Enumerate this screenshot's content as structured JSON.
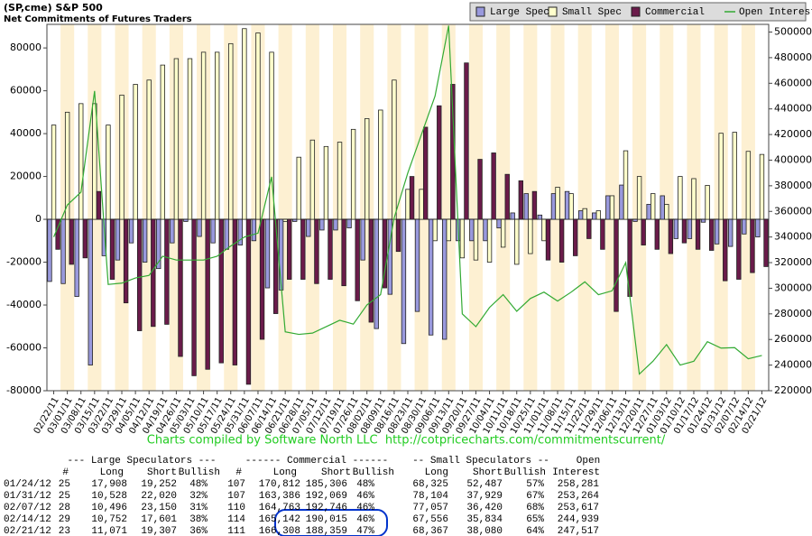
{
  "chart_data": {
    "type": "bar",
    "title": "(SP,cme) S&P 500",
    "subtitle": "Net Commitments of Futures Traders",
    "credit": "Charts compiled by Software North LLC  http://cotpricecharts.com/commitmentscurrent/",
    "legend": "top-right",
    "categories": [
      "02/22/11",
      "03/01/11",
      "03/08/11",
      "03/15/11",
      "03/22/11",
      "03/29/11",
      "04/05/11",
      "04/12/11",
      "04/19/11",
      "04/26/11",
      "05/03/11",
      "05/10/11",
      "05/17/11",
      "05/24/11",
      "05/31/11",
      "06/07/11",
      "06/14/11",
      "06/21/11",
      "06/28/11",
      "07/05/11",
      "07/12/11",
      "07/19/11",
      "07/26/11",
      "08/02/11",
      "08/09/11",
      "08/16/11",
      "08/23/11",
      "08/30/11",
      "09/06/11",
      "09/13/11",
      "09/20/11",
      "09/27/11",
      "10/04/11",
      "10/11/11",
      "10/18/11",
      "10/25/11",
      "11/01/11",
      "11/08/11",
      "11/15/11",
      "11/22/11",
      "11/29/11",
      "12/06/11",
      "12/13/11",
      "12/20/11",
      "12/27/11",
      "01/03/12",
      "01/10/12",
      "01/17/12",
      "01/24/12",
      "01/31/12",
      "02/07/12",
      "02/14/12",
      "02/21/12"
    ],
    "series": [
      {
        "name": "Large Spec",
        "type": "bar",
        "color": "#9999dd",
        "values": [
          -29000,
          -30000,
          -36000,
          -68000,
          -17000,
          -19000,
          -11000,
          -20000,
          -23000,
          -11000,
          -1000,
          -8000,
          -11000,
          -14000,
          -12000,
          -10000,
          -32000,
          -33000,
          -1000,
          -8000,
          -5000,
          -5000,
          -4000,
          -19000,
          -51000,
          -35000,
          -58000,
          -43000,
          -54000,
          -56000,
          -10000,
          -10000,
          -10000,
          -4000,
          3000,
          12000,
          2000,
          12000,
          13000,
          4000,
          3000,
          11000,
          16000,
          -1000,
          7000,
          11000,
          -9000,
          -9000,
          -1344,
          -11492,
          -12654,
          -6849,
          -8236
        ]
      },
      {
        "name": "Small Spec",
        "type": "bar",
        "color": "#ffffcc",
        "values": [
          44000,
          50000,
          54000,
          54000,
          44000,
          58000,
          63000,
          65000,
          72000,
          75000,
          75000,
          78000,
          78000,
          82000,
          89000,
          87000,
          78000,
          -1000,
          29000,
          37000,
          34000,
          36000,
          42000,
          47000,
          51000,
          65000,
          14000,
          14000,
          -10000,
          -10000,
          -18000,
          -19000,
          -20000,
          -13000,
          -21000,
          -16000,
          -10000,
          15000,
          12000,
          5000,
          4000,
          11000,
          32000,
          20000,
          12000,
          7000,
          20000,
          19000,
          15838,
          40175,
          40637,
          31722,
          30287
        ]
      },
      {
        "name": "Commercial",
        "type": "bar",
        "color": "#6a1b4a",
        "values": [
          -14000,
          -21000,
          -18000,
          13000,
          -28000,
          -39000,
          -52000,
          -50000,
          -49000,
          -64000,
          -73000,
          -70000,
          -67000,
          -68000,
          -77000,
          -56000,
          -44000,
          -28000,
          -28000,
          -30000,
          -28000,
          -31000,
          -38000,
          -48000,
          -32000,
          -15000,
          20000,
          43000,
          53000,
          63000,
          73000,
          28000,
          31000,
          21000,
          18000,
          13000,
          -19000,
          -20000,
          -17000,
          -9000,
          -14000,
          -43000,
          -36000,
          -12000,
          -14000,
          -16000,
          -11000,
          -14000,
          -14494,
          -28683,
          -27983,
          -24873,
          -22051
        ]
      },
      {
        "name": "Open Interest",
        "type": "line",
        "axis": "y2",
        "color": "#33aa33",
        "values": [
          340000,
          365000,
          375000,
          454000,
          303000,
          304000,
          308000,
          310000,
          325000,
          322000,
          322000,
          322000,
          325000,
          333000,
          340000,
          343000,
          387000,
          266000,
          264000,
          265000,
          270000,
          275000,
          272000,
          287000,
          295000,
          355000,
          390000,
          420000,
          450000,
          505000,
          280000,
          270000,
          285000,
          295000,
          282000,
          292000,
          297000,
          290000,
          297000,
          305000,
          295000,
          298000,
          320000,
          233000,
          243000,
          256000,
          240000,
          243000,
          258281,
          253264,
          253617,
          244939,
          247517
        ]
      }
    ],
    "ylim": [
      -80000,
      91000
    ],
    "yticks": [
      -80000,
      -60000,
      -40000,
      -20000,
      0,
      20000,
      40000,
      60000,
      80000
    ],
    "y2lim": [
      220000,
      506000
    ],
    "y2ticks": [
      220000,
      240000,
      260000,
      280000,
      300000,
      320000,
      340000,
      360000,
      380000,
      400000,
      420000,
      440000,
      460000,
      480000,
      500000
    ]
  },
  "table": {
    "group_headers": [
      "--- Large Speculators ---",
      "------ Commercial ------",
      "-- Small Speculators --",
      "Open"
    ],
    "column_headers": [
      "#",
      "Long",
      "Short",
      "Bullish",
      "#",
      "Long",
      "Short",
      "Bullish",
      "Long",
      "Short",
      "Bullish",
      "Interest"
    ],
    "rows": [
      [
        "01/24/12",
        "25",
        "17,908",
        "19,252",
        "48%",
        "107",
        "170,812",
        "185,306",
        "48%",
        "68,325",
        "52,487",
        "57%",
        "258,281"
      ],
      [
        "01/31/12",
        "25",
        "10,528",
        "22,020",
        "32%",
        "107",
        "163,386",
        "192,069",
        "46%",
        "78,104",
        "37,929",
        "67%",
        "253,264"
      ],
      [
        "02/07/12",
        "28",
        "10,496",
        "23,150",
        "31%",
        "110",
        "164,763",
        "192,746",
        "46%",
        "77,057",
        "36,420",
        "68%",
        "253,617"
      ],
      [
        "02/14/12",
        "29",
        "10,752",
        "17,601",
        "38%",
        "114",
        "165,142",
        "190,015",
        "46%",
        "67,556",
        "35,834",
        "65%",
        "244,939"
      ],
      [
        "02/21/12",
        "23",
        "11,071",
        "19,307",
        "36%",
        "111",
        "166,308",
        "188,359",
        "47%",
        "68,367",
        "38,080",
        "64%",
        "247,517"
      ]
    ]
  }
}
